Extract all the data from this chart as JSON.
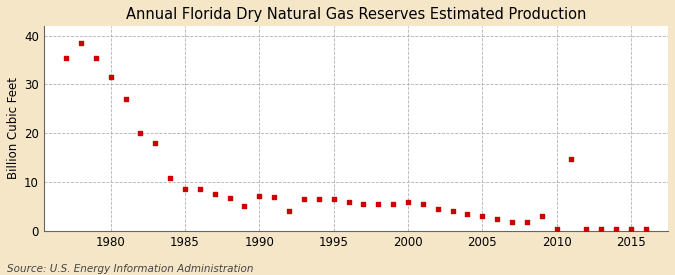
{
  "title": "Annual Florida Dry Natural Gas Reserves Estimated Production",
  "ylabel": "Billion Cubic Feet",
  "source": "Source: U.S. Energy Information Administration",
  "background_color": "#f5e6c8",
  "plot_background_color": "#ffffff",
  "grid_color": "#aaaaaa",
  "marker_color": "#cc0000",
  "years": [
    1977,
    1978,
    1979,
    1980,
    1981,
    1982,
    1983,
    1984,
    1985,
    1986,
    1987,
    1988,
    1989,
    1990,
    1991,
    1992,
    1993,
    1994,
    1995,
    1996,
    1997,
    1998,
    1999,
    2000,
    2001,
    2002,
    2003,
    2004,
    2005,
    2006,
    2007,
    2008,
    2009,
    2010,
    2011,
    2012,
    2013,
    2014,
    2015,
    2016
  ],
  "values": [
    35.5,
    38.5,
    35.5,
    31.5,
    27.0,
    20.0,
    18.0,
    10.8,
    8.5,
    8.5,
    7.5,
    6.8,
    5.2,
    7.2,
    7.0,
    4.0,
    6.5,
    6.5,
    6.5,
    6.0,
    5.5,
    5.5,
    5.5,
    6.0,
    5.5,
    4.5,
    4.0,
    3.5,
    3.0,
    2.5,
    1.8,
    1.8,
    3.0,
    0.3,
    14.8,
    0.3,
    0.3,
    0.3,
    0.3,
    0.3
  ],
  "xlim": [
    1975.5,
    2017.5
  ],
  "ylim": [
    0,
    42
  ],
  "yticks": [
    0,
    10,
    20,
    30,
    40
  ],
  "xticks": [
    1980,
    1985,
    1990,
    1995,
    2000,
    2005,
    2010,
    2015
  ],
  "title_fontsize": 10.5,
  "label_fontsize": 8.5,
  "tick_fontsize": 8.5,
  "source_fontsize": 7.5
}
